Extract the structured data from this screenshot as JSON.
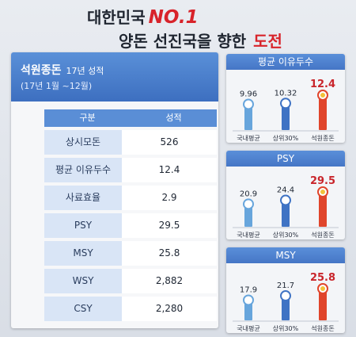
{
  "headline": {
    "line1_prefix": "대한민국",
    "line1_accent": "NO.1",
    "line2_prefix": "양돈 선진국을 향한",
    "line2_accent": "도전"
  },
  "left": {
    "title": "석원종돈",
    "title_suffix": "17년 성적",
    "period": "(17년 1월 ~12월)",
    "table": {
      "headers": [
        "구분",
        "성적"
      ],
      "rows": [
        {
          "label": "상시모돈",
          "value": "526"
        },
        {
          "label": "평균 이유두수",
          "value": "12.4"
        },
        {
          "label": "사료효율",
          "value": "2.9"
        },
        {
          "label": "PSY",
          "value": "29.5"
        },
        {
          "label": "MSY",
          "value": "25.8"
        },
        {
          "label": "WSY",
          "value": "2,882"
        },
        {
          "label": "CSY",
          "value": "2,280"
        }
      ]
    }
  },
  "colors": {
    "blue_bar": "#3f73c4",
    "light_bar": "#67a5dc",
    "red_bar": "#e0452b",
    "red_text": "#c9252b"
  },
  "chart_data": [
    {
      "type": "bar",
      "title": "평균 이유두수",
      "categories": [
        "국내평균",
        "상위30%",
        "석원종돈"
      ],
      "values": [
        9.96,
        10.32,
        12.4
      ],
      "labels": [
        "9.96",
        "10.32",
        "12.4"
      ]
    },
    {
      "type": "bar",
      "title": "PSY",
      "categories": [
        "국내평균",
        "상위30%",
        "석원종돈"
      ],
      "values": [
        20.9,
        24.4,
        29.5
      ],
      "labels": [
        "20.9",
        "24.4",
        "29.5"
      ]
    },
    {
      "type": "bar",
      "title": "MSY",
      "categories": [
        "국내평균",
        "상위30%",
        "석원종돈"
      ],
      "values": [
        17.9,
        21.7,
        25.8
      ],
      "labels": [
        "17.9",
        "21.7",
        "25.8"
      ]
    }
  ]
}
